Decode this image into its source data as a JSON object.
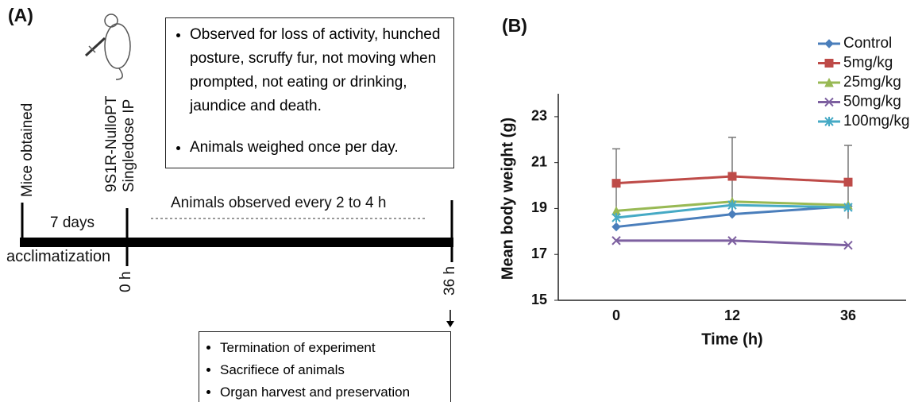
{
  "panel_a": {
    "label": "(A)",
    "mice_obtained": "Mice obtained",
    "injection": [
      "9S1R-NulloPT",
      "Singledose IP"
    ],
    "days": "7 days",
    "acclimatization": "acclimatization",
    "start": "0 h",
    "end": "36 h",
    "observed": "Animals observed every 2 to 4 h",
    "observation_box": [
      "Observed for loss of activity, hunched posture, scruffy fur, not moving when prompted, not eating or drinking, jaundice and death.",
      "Animals weighed once per day."
    ],
    "end_box": [
      "Termination of experiment",
      "Sacrifiece of animals",
      "Organ harvest and preservation"
    ]
  },
  "chart_data": {
    "type": "line",
    "panel_label": "(B)",
    "x_label": "Time (h)",
    "y_label": "Mean body weight (g)",
    "categories": [
      "0",
      "12",
      "36"
    ],
    "ylim": [
      15,
      24
    ],
    "yticks": [
      15,
      17,
      19,
      21,
      23
    ],
    "series": [
      {
        "name": "Control",
        "color": "#4a7ebb",
        "marker": "diamond",
        "values": [
          18.2,
          18.75,
          19.1
        ]
      },
      {
        "name": "5mg/kg",
        "color": "#be4b48",
        "marker": "square",
        "values": [
          20.1,
          20.4,
          20.15
        ],
        "errors": [
          1.5,
          1.7,
          1.6
        ]
      },
      {
        "name": "25mg/kg",
        "color": "#98b954",
        "marker": "triangle",
        "values": [
          18.9,
          19.3,
          19.15
        ]
      },
      {
        "name": "50mg/kg",
        "color": "#7d60a0",
        "marker": "x",
        "values": [
          17.6,
          17.6,
          17.4
        ]
      },
      {
        "name": "100mg/kg",
        "color": "#46aac5",
        "marker": "star",
        "values": [
          18.6,
          19.15,
          19.05
        ]
      }
    ]
  }
}
